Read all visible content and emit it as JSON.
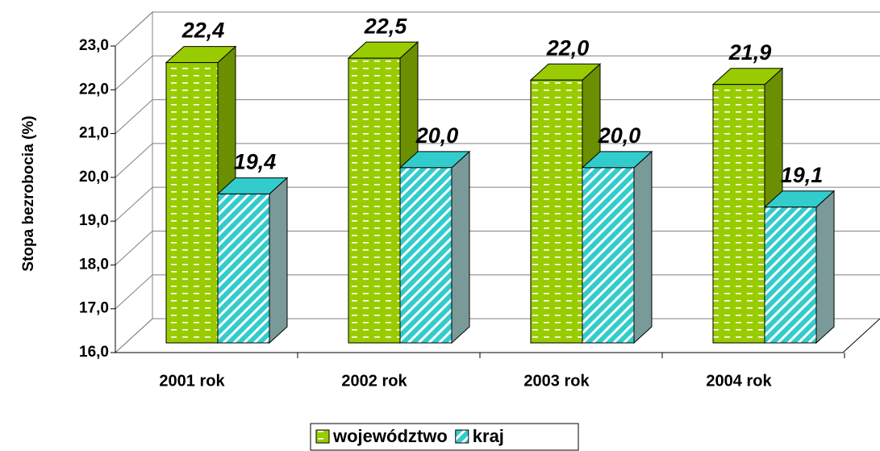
{
  "chart_data": {
    "type": "bar3d",
    "y_axis_label": "Stopa bezrobocia  (%)",
    "categories": [
      "2001 rok",
      "2002 rok",
      "2003 rok",
      "2004 rok"
    ],
    "series": [
      {
        "name": "województwo",
        "color": "#99cc00",
        "values": [
          22.4,
          22.5,
          22.0,
          21.9
        ],
        "value_labels": [
          "22,4",
          "22,5",
          "22,0",
          "21,9"
        ]
      },
      {
        "name": "kraj",
        "color": "#33cccc",
        "values": [
          19.4,
          20.0,
          20.0,
          19.1
        ],
        "value_labels": [
          "19,4",
          "20,0",
          "20,0",
          "19,1"
        ]
      }
    ],
    "ylim": [
      16,
      23
    ],
    "yticks": [
      {
        "value": 16,
        "label": "16,0"
      },
      {
        "value": 17,
        "label": "17,0"
      },
      {
        "value": 18,
        "label": "18,0"
      },
      {
        "value": 19,
        "label": "19,0"
      },
      {
        "value": 20,
        "label": "20,0"
      },
      {
        "value": 21,
        "label": "21,0"
      },
      {
        "value": 22,
        "label": "22,0"
      },
      {
        "value": 23,
        "label": "23,0"
      }
    ],
    "grid": true,
    "legend": "bottom"
  }
}
